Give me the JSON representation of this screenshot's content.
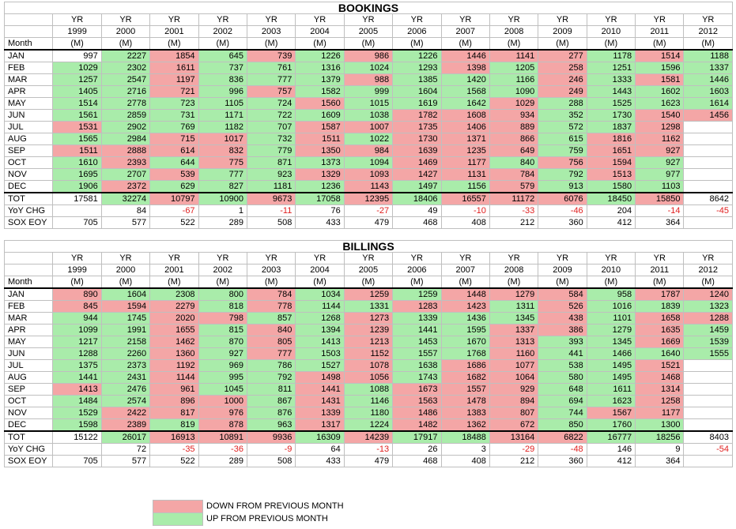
{
  "years": [
    "1999",
    "2000",
    "2001",
    "2002",
    "2003",
    "2004",
    "2005",
    "2006",
    "2007",
    "2008",
    "2009",
    "2010",
    "2011",
    "2012"
  ],
  "header": {
    "yr": "YR",
    "unit": "(M)",
    "month_label": "Month"
  },
  "row_labels": {
    "total": "TOT",
    "yoy": "YoY CHG",
    "sox": "SOX EOY"
  },
  "bookings": {
    "title": "BOOKINGS",
    "rows": [
      {
        "month": "JAN",
        "v": [
          "997",
          "2227",
          "1854",
          "645",
          "739",
          "1226",
          "986",
          "1226",
          "1446",
          "1141",
          "277",
          "1178",
          "1514",
          "1188"
        ],
        "c": "wgrgrgrgrrrgrg"
      },
      {
        "month": "FEB",
        "v": [
          "1029",
          "2302",
          "1611",
          "737",
          "761",
          "1316",
          "1024",
          "1293",
          "1398",
          "1205",
          "258",
          "1251",
          "1596",
          "1337"
        ],
        "c": "ggrgggggrgrggg"
      },
      {
        "month": "MAR",
        "v": [
          "1257",
          "2547",
          "1197",
          "836",
          "777",
          "1379",
          "988",
          "1385",
          "1420",
          "1166",
          "246",
          "1333",
          "1581",
          "1446"
        ],
        "c": "ggrgggrgggrgrg"
      },
      {
        "month": "APR",
        "v": [
          "1405",
          "2716",
          "721",
          "996",
          "757",
          "1582",
          "999",
          "1604",
          "1568",
          "1090",
          "249",
          "1443",
          "1602",
          "1603"
        ],
        "c": "ggrgrgggggrggg"
      },
      {
        "month": "MAY",
        "v": [
          "1514",
          "2778",
          "723",
          "1105",
          "724",
          "1560",
          "1015",
          "1619",
          "1642",
          "1029",
          "288",
          "1525",
          "1623",
          "1614"
        ],
        "c": "gggggrgggrgggg"
      },
      {
        "month": "JUN",
        "v": [
          "1561",
          "2859",
          "731",
          "1171",
          "722",
          "1609",
          "1038",
          "1782",
          "1608",
          "934",
          "352",
          "1730",
          "1540",
          "1456"
        ],
        "c": "gggggggrrrggrr"
      },
      {
        "month": "JUL",
        "v": [
          "1531",
          "2902",
          "769",
          "1182",
          "707",
          "1587",
          "1007",
          "1735",
          "1406",
          "889",
          "572",
          "1837",
          "1298",
          ""
        ],
        "c": "rggggrrrrrggrw"
      },
      {
        "month": "AUG",
        "v": [
          "1565",
          "2984",
          "715",
          "1017",
          "732",
          "1511",
          "1022",
          "1730",
          "1371",
          "866",
          "615",
          "1816",
          "1162",
          ""
        ],
        "c": "ggrrgrgrrrgrrw"
      },
      {
        "month": "SEP",
        "v": [
          "1511",
          "2888",
          "614",
          "832",
          "779",
          "1350",
          "984",
          "1639",
          "1235",
          "649",
          "759",
          "1651",
          "927",
          ""
        ],
        "c": "rrrrgrrrrrgrrw"
      },
      {
        "month": "OCT",
        "v": [
          "1610",
          "2393",
          "644",
          "775",
          "871",
          "1373",
          "1094",
          "1469",
          "1177",
          "840",
          "756",
          "1594",
          "927",
          ""
        ],
        "c": "grgrgggrrgrrgw"
      },
      {
        "month": "NOV",
        "v": [
          "1695",
          "2707",
          "539",
          "777",
          "923",
          "1329",
          "1093",
          "1427",
          "1131",
          "784",
          "792",
          "1513",
          "977",
          ""
        ],
        "c": "ggrggrrrrrgrgw"
      },
      {
        "month": "DEC",
        "v": [
          "1906",
          "2372",
          "629",
          "827",
          "1181",
          "1236",
          "1143",
          "1497",
          "1156",
          "579",
          "913",
          "1580",
          "1103",
          ""
        ],
        "c": "grggggrggrgggw"
      }
    ],
    "total": [
      "17581",
      "32274",
      "10797",
      "10900",
      "9673",
      "17058",
      "12395",
      "18406",
      "16557",
      "11172",
      "6076",
      "18450",
      "15850",
      "8642"
    ],
    "total_c": "wgrgrgrgrrrgrw",
    "yoy": [
      "",
      "84",
      "-67",
      "1",
      "-11",
      "76",
      "-27",
      "49",
      "-10",
      "-33",
      "-46",
      "204",
      "-14",
      "-45"
    ],
    "sox": [
      "705",
      "577",
      "522",
      "289",
      "508",
      "433",
      "479",
      "468",
      "408",
      "212",
      "360",
      "412",
      "364",
      ""
    ]
  },
  "billings": {
    "title": "BILLINGS",
    "rows": [
      {
        "month": "JAN",
        "v": [
          "890",
          "1604",
          "2308",
          "800",
          "784",
          "1034",
          "1259",
          "1259",
          "1448",
          "1279",
          "584",
          "958",
          "1787",
          "1240"
        ],
        "c": "rgggrgrgrrrgrr"
      },
      {
        "month": "FEB",
        "v": [
          "845",
          "1594",
          "2279",
          "818",
          "778",
          "1144",
          "1331",
          "1283",
          "1423",
          "1311",
          "526",
          "1016",
          "1839",
          "1323"
        ],
        "c": "rrrgrggrrgrggg"
      },
      {
        "month": "MAR",
        "v": [
          "944",
          "1745",
          "2020",
          "798",
          "857",
          "1268",
          "1273",
          "1339",
          "1436",
          "1345",
          "438",
          "1101",
          "1658",
          "1288"
        ],
        "c": "ggrrggrgggrgrr"
      },
      {
        "month": "APR",
        "v": [
          "1099",
          "1991",
          "1655",
          "815",
          "840",
          "1394",
          "1239",
          "1441",
          "1595",
          "1337",
          "386",
          "1279",
          "1635",
          "1459"
        ],
        "c": "ggrgrgrggrrgrg"
      },
      {
        "month": "MAY",
        "v": [
          "1217",
          "2158",
          "1462",
          "870",
          "805",
          "1413",
          "1213",
          "1453",
          "1670",
          "1313",
          "393",
          "1345",
          "1669",
          "1539"
        ],
        "c": "ggrgrgrggrggrg"
      },
      {
        "month": "JUN",
        "v": [
          "1288",
          "2260",
          "1360",
          "927",
          "777",
          "1503",
          "1152",
          "1557",
          "1768",
          "1160",
          "441",
          "1466",
          "1640",
          "1555"
        ],
        "c": "ggrgrgrggrgggg"
      },
      {
        "month": "JUL",
        "v": [
          "1375",
          "2373",
          "1192",
          "969",
          "786",
          "1527",
          "1078",
          "1638",
          "1686",
          "1077",
          "538",
          "1495",
          "1521",
          ""
        ],
        "c": "ggrgggrgrrggrw"
      },
      {
        "month": "AUG",
        "v": [
          "1441",
          "2431",
          "1144",
          "995",
          "792",
          "1498",
          "1056",
          "1743",
          "1682",
          "1064",
          "580",
          "1495",
          "1468",
          ""
        ],
        "c": "ggrggrrgrrggrw"
      },
      {
        "month": "SEP",
        "v": [
          "1413",
          "2476",
          "961",
          "1045",
          "811",
          "1441",
          "1088",
          "1673",
          "1557",
          "929",
          "648",
          "1611",
          "1314",
          ""
        ],
        "c": "rgrggrgrrrggrw"
      },
      {
        "month": "OCT",
        "v": [
          "1484",
          "2574",
          "896",
          "1000",
          "867",
          "1431",
          "1146",
          "1563",
          "1478",
          "894",
          "694",
          "1623",
          "1258",
          ""
        ],
        "c": "ggrrgrgrrrggrw"
      },
      {
        "month": "NOV",
        "v": [
          "1529",
          "2422",
          "817",
          "976",
          "876",
          "1339",
          "1180",
          "1486",
          "1383",
          "807",
          "744",
          "1567",
          "1177",
          ""
        ],
        "c": "grrrgrgrrrgrrw"
      },
      {
        "month": "DEC",
        "v": [
          "1598",
          "2389",
          "819",
          "878",
          "963",
          "1317",
          "1224",
          "1482",
          "1362",
          "672",
          "850",
          "1760",
          "1300",
          ""
        ],
        "c": "grgrgrgrrrgggw"
      }
    ],
    "total": [
      "15122",
      "26017",
      "16913",
      "10891",
      "9936",
      "16309",
      "14239",
      "17917",
      "18488",
      "13164",
      "6822",
      "16777",
      "18256",
      "8403"
    ],
    "total_c": "wgrrrgrggrrggw",
    "yoy": [
      "",
      "72",
      "-35",
      "-36",
      "-9",
      "64",
      "-13",
      "26",
      "3",
      "-29",
      "-48",
      "146",
      "9",
      "-54"
    ],
    "sox": [
      "705",
      "577",
      "522",
      "289",
      "508",
      "433",
      "479",
      "468",
      "408",
      "212",
      "360",
      "412",
      "364",
      ""
    ]
  },
  "legend": {
    "down_label": "DOWN FROM PREVIOUS MONTH",
    "up_label": "UP FROM PREVIOUS MONTH",
    "down_color": "#f4a6a6",
    "up_color": "#a9ecaa"
  }
}
